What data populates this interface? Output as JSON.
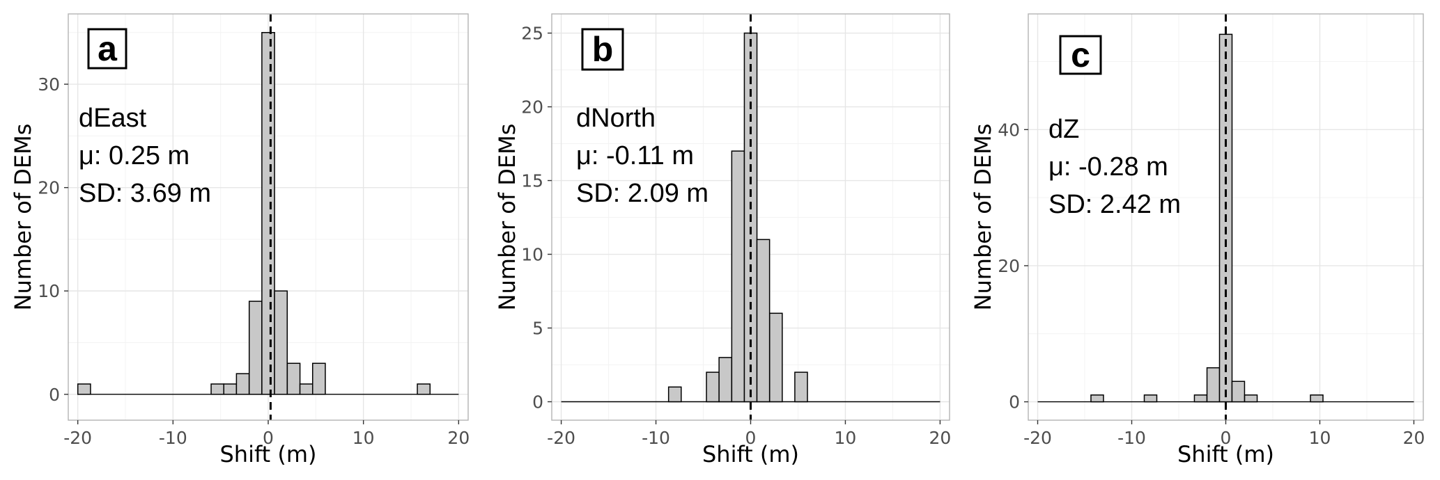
{
  "chart_data": [
    {
      "type": "bar",
      "panel_label": "a",
      "annotation": [
        "dEast",
        "μ: 0.25 m",
        "SD: 3.69 m"
      ],
      "xlabel": "Shift (m)",
      "ylabel": "Number of DEMs",
      "xlim": [
        -21,
        21
      ],
      "ylim": [
        -2.5,
        36.8
      ],
      "xticks": [
        -20,
        -10,
        0,
        10,
        20
      ],
      "xtick_labels": [
        "-20",
        "-10",
        "0",
        "10",
        "20"
      ],
      "yticks": [
        0,
        10,
        20,
        30
      ],
      "ytick_labels": [
        "0",
        "10",
        "20",
        "30"
      ],
      "grid": true,
      "reference_line_x": 0.25,
      "bin_width": 1.333,
      "bins": [
        {
          "x": -19.33,
          "count": 1
        },
        {
          "x": -5.33,
          "count": 1
        },
        {
          "x": -4.0,
          "count": 1
        },
        {
          "x": -2.67,
          "count": 2
        },
        {
          "x": -1.33,
          "count": 9
        },
        {
          "x": 0.0,
          "count": 35
        },
        {
          "x": 1.33,
          "count": 10
        },
        {
          "x": 2.67,
          "count": 3
        },
        {
          "x": 4.0,
          "count": 1
        },
        {
          "x": 5.33,
          "count": 3
        },
        {
          "x": 16.33,
          "count": 1
        }
      ]
    },
    {
      "type": "bar",
      "panel_label": "b",
      "annotation": [
        "dNorth",
        "μ: -0.11 m",
        "SD: 2.09 m"
      ],
      "xlabel": "Shift (m)",
      "ylabel": "Number of DEMs",
      "xlim": [
        -21,
        21
      ],
      "ylim": [
        -1.25,
        26.3
      ],
      "xticks": [
        -20,
        -10,
        0,
        10,
        20
      ],
      "xtick_labels": [
        "-20",
        "-10",
        "0",
        "10",
        "20"
      ],
      "yticks": [
        0,
        5,
        10,
        15,
        20,
        25
      ],
      "ytick_labels": [
        "0",
        "5",
        "10",
        "15",
        "20",
        "25"
      ],
      "grid": true,
      "reference_line_x": 0,
      "bin_width": 1.333,
      "bins": [
        {
          "x": -8.0,
          "count": 1
        },
        {
          "x": -4.0,
          "count": 2
        },
        {
          "x": -2.67,
          "count": 3
        },
        {
          "x": -1.33,
          "count": 17
        },
        {
          "x": 0.0,
          "count": 25
        },
        {
          "x": 1.33,
          "count": 11
        },
        {
          "x": 2.67,
          "count": 6
        },
        {
          "x": 5.33,
          "count": 2
        }
      ]
    },
    {
      "type": "bar",
      "panel_label": "c",
      "annotation": [
        "dZ",
        "μ: -0.28 m",
        "SD: 2.42 m"
      ],
      "xlabel": "Shift (m)",
      "ylabel": "Number of DEMs",
      "xlim": [
        -21,
        21
      ],
      "ylim": [
        -2.7,
        57.0
      ],
      "xticks": [
        -20,
        -10,
        0,
        10,
        20
      ],
      "xtick_labels": [
        "-20",
        "-10",
        "0",
        "10",
        "20"
      ],
      "yticks": [
        0,
        20,
        40
      ],
      "ytick_labels": [
        "0",
        "20",
        "40"
      ],
      "grid": true,
      "reference_line_x": 0,
      "bin_width": 1.333,
      "bins": [
        {
          "x": -13.67,
          "count": 1
        },
        {
          "x": -8.0,
          "count": 1
        },
        {
          "x": -2.67,
          "count": 1
        },
        {
          "x": -1.33,
          "count": 5
        },
        {
          "x": 0.0,
          "count": 54
        },
        {
          "x": 1.33,
          "count": 3
        },
        {
          "x": 2.67,
          "count": 1
        },
        {
          "x": 9.67,
          "count": 1
        }
      ]
    }
  ],
  "style": {
    "bar_fill": "#c8c8c8",
    "bar_stroke": "#000000",
    "grid_major": "#e6e6e6",
    "grid_minor": "#f3f3f3",
    "panel_border": "#b3b3b3",
    "tick_text": "#4d4d4d"
  }
}
